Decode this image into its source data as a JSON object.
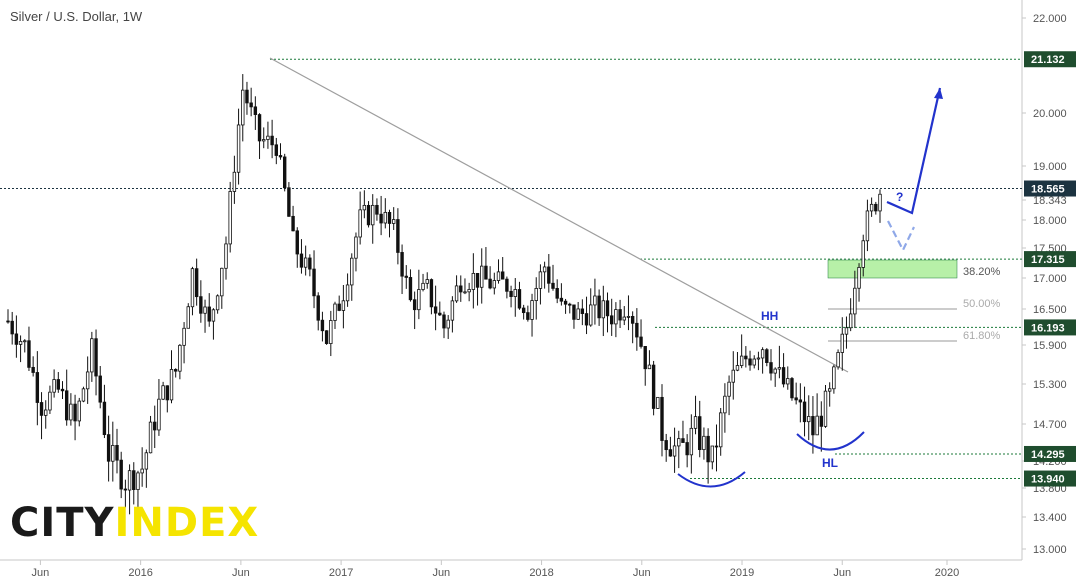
{
  "title": "Silver / U.S. Dollar, 1W",
  "logo": {
    "part1": "CITY",
    "part2": "INDEX"
  },
  "colors": {
    "candle": "#111111",
    "trendline": "#9e9e9e",
    "level_line": "#1b7a3a",
    "level_tag": "#1f4d2e",
    "current_tag": "#1c3340",
    "pattern": "#2233cc",
    "projection_light": "#8fa8e8",
    "fib_zone": "#b7f0a8"
  },
  "chart_data": {
    "type": "candlestick",
    "symbol": "Silver / U.S. Dollar",
    "interval": "1W",
    "ylim": [
      13.0,
      22.0
    ],
    "y_ticks": [
      "22.000",
      "21.132",
      "20.000",
      "19.000",
      "18.565",
      "18.343",
      "18.000",
      "17.500",
      "17.315",
      "17.000",
      "16.500",
      "16.193",
      "15.900",
      "15.300",
      "14.700",
      "14.295",
      "14.200",
      "13.940",
      "13.800",
      "13.400",
      "13.000"
    ],
    "x_ticks": [
      "Jun",
      "2016",
      "Jun",
      "2017",
      "Jun",
      "2018",
      "Jun",
      "2019",
      "Jun",
      "2020"
    ],
    "price_levels": [
      {
        "label": "21.132",
        "value": 21.132,
        "style": "tag",
        "kind": "level"
      },
      {
        "label": "18.565",
        "value": 18.565,
        "style": "tag",
        "kind": "current"
      },
      {
        "label": "17.315",
        "value": 17.315,
        "style": "tag",
        "kind": "level"
      },
      {
        "label": "16.193",
        "value": 16.193,
        "style": "tag",
        "kind": "level"
      },
      {
        "label": "14.295",
        "value": 14.295,
        "style": "tag",
        "kind": "level"
      },
      {
        "label": "13.940",
        "value": 13.94,
        "style": "tag",
        "kind": "level"
      }
    ],
    "fib_levels": [
      {
        "label": "38.20%",
        "value": 17.0
      },
      {
        "label": "50.00%",
        "value": 16.5
      },
      {
        "label": "61.80%",
        "value": 16.0
      }
    ],
    "annotations": [
      "HH",
      "HL",
      "?"
    ],
    "trendline": {
      "from": [
        "2016-07",
        21.1
      ],
      "to": [
        "2019-07",
        15.5
      ]
    },
    "weekly_close_path": [
      [
        "2015-05",
        16.3
      ],
      [
        "2015-06",
        15.9
      ],
      [
        "2015-07",
        15.0
      ],
      [
        "2015-08",
        15.2
      ],
      [
        "2015-09",
        14.7
      ],
      [
        "2015-10",
        15.8
      ],
      [
        "2015-11",
        14.3
      ],
      [
        "2015-12",
        13.9
      ],
      [
        "2016-01",
        14.1
      ],
      [
        "2016-02",
        15.0
      ],
      [
        "2016-03",
        15.5
      ],
      [
        "2016-04",
        17.1
      ],
      [
        "2016-05",
        16.2
      ],
      [
        "2016-06",
        17.6
      ],
      [
        "2016-07",
        20.5
      ],
      [
        "2016-08",
        19.5
      ],
      [
        "2016-09",
        19.4
      ],
      [
        "2016-10",
        17.6
      ],
      [
        "2016-11",
        17.0
      ],
      [
        "2016-12",
        16.0
      ],
      [
        "2017-01",
        16.8
      ],
      [
        "2017-02",
        18.0
      ],
      [
        "2017-03",
        18.2
      ],
      [
        "2017-04",
        17.8
      ],
      [
        "2017-05",
        16.6
      ],
      [
        "2017-06",
        16.8
      ],
      [
        "2017-07",
        16.2
      ],
      [
        "2017-08",
        17.0
      ],
      [
        "2017-09",
        17.0
      ],
      [
        "2017-10",
        16.9
      ],
      [
        "2017-11",
        16.9
      ],
      [
        "2017-12",
        16.5
      ],
      [
        "2018-01",
        17.2
      ],
      [
        "2018-02",
        16.5
      ],
      [
        "2018-03",
        16.4
      ],
      [
        "2018-04",
        16.5
      ],
      [
        "2018-05",
        16.4
      ],
      [
        "2018-06",
        16.6
      ],
      [
        "2018-07",
        15.7
      ],
      [
        "2018-08",
        14.6
      ],
      [
        "2018-09",
        14.3
      ],
      [
        "2018-10",
        14.6
      ],
      [
        "2018-11",
        14.2
      ],
      [
        "2018-12",
        15.3
      ],
      [
        "2019-01",
        15.7
      ],
      [
        "2019-02",
        15.9
      ],
      [
        "2019-03",
        15.4
      ],
      [
        "2019-04",
        15.0
      ],
      [
        "2019-05",
        14.6
      ],
      [
        "2019-06",
        15.1
      ],
      [
        "2019-07",
        16.2
      ],
      [
        "2019-08",
        17.8
      ],
      [
        "2019-09",
        18.5
      ]
    ]
  }
}
